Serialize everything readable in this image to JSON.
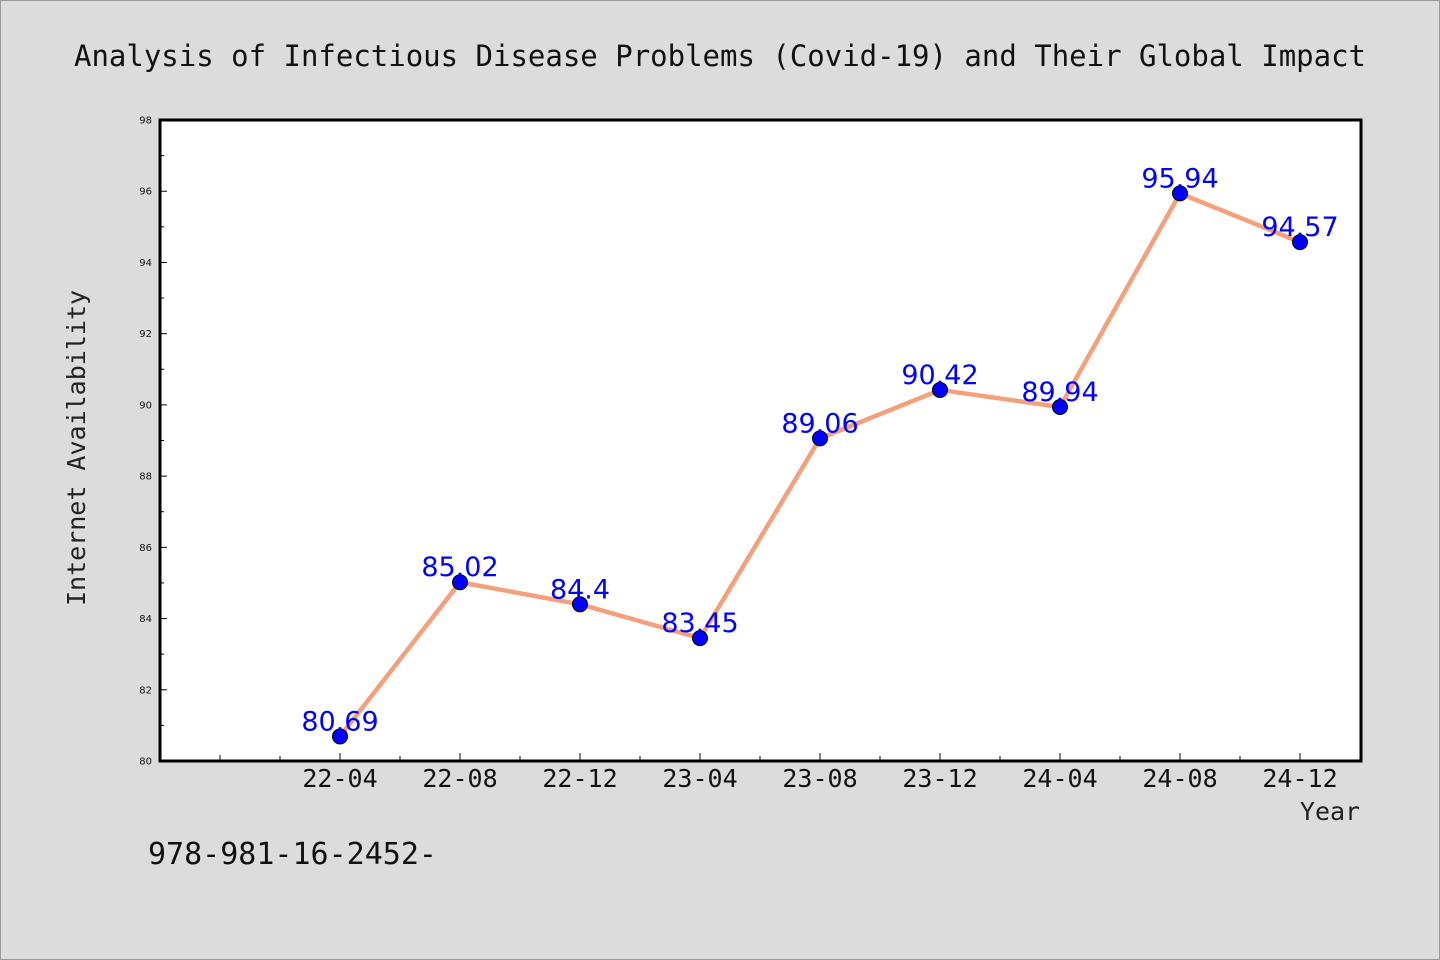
{
  "chart_data": {
    "type": "line",
    "title": "Analysis of Infectious Disease Problems (Covid-19) and Their Global Impact",
    "xlabel": "Year",
    "ylabel": "Internet Availability",
    "categories": [
      "22-04",
      "22-08",
      "22-12",
      "23-04",
      "23-08",
      "23-12",
      "24-04",
      "24-08",
      "24-12"
    ],
    "series": [
      {
        "values": [
          80.69,
          85.02,
          84.4,
          83.45,
          89.06,
          90.42,
          89.94,
          95.94,
          94.57
        ],
        "labels": [
          "80.69",
          "85.02",
          "84.4",
          "83.45",
          "89.06",
          "90.42",
          "89.94",
          "95.94",
          "94.57"
        ],
        "line_color": "#f4a07c",
        "marker_color": "#0000ff"
      }
    ],
    "ylim": [
      80,
      98
    ],
    "yticks": [
      "80",
      "82",
      "84",
      "86",
      "88",
      "90",
      "92",
      "94",
      "96",
      "98"
    ],
    "grid": false,
    "legend": "none",
    "label_color": "#0000ff"
  },
  "footer_text": "978-981-16-2452-"
}
